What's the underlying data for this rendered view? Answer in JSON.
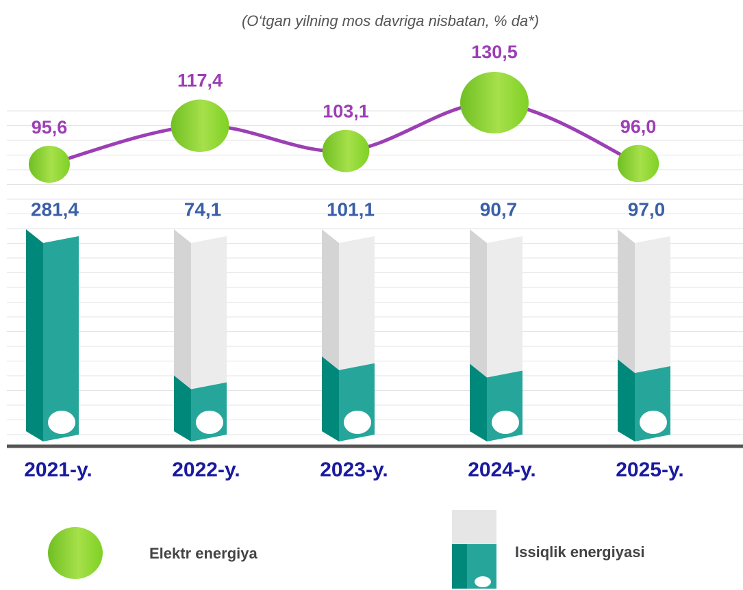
{
  "chart_data": {
    "type": "combo",
    "subtitle": "(O‘tgan yilning mos davriga nisbatan, % da*)",
    "categories": [
      "2021-y.",
      "2022-y.",
      "2023-y.",
      "2024-y.",
      "2025-y."
    ],
    "series": [
      {
        "name": "Elektr energiya",
        "type": "line",
        "color": "#9c3fb5",
        "values": [
          95.6,
          117.4,
          103.1,
          130.5,
          96.0
        ],
        "value_labels": [
          "95,6",
          "117,4",
          "103,1",
          "130,5",
          "96,0"
        ]
      },
      {
        "name": "Issiqlik energiyasi",
        "type": "bar",
        "color": "#26a69a",
        "values": [
          281.4,
          74.1,
          101.1,
          90.7,
          97.0
        ],
        "value_labels": [
          "281,4",
          "74,1",
          "101,1",
          "90,7",
          "97,0"
        ]
      }
    ]
  }
}
